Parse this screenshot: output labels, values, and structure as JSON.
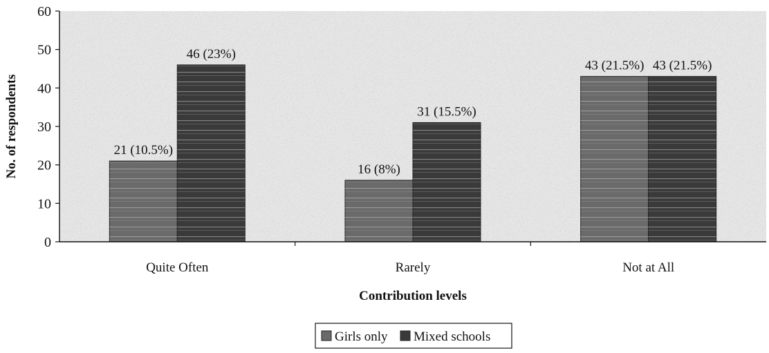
{
  "chart_data": {
    "type": "bar",
    "xlabel": "Contribution levels",
    "ylabel": "No. of respondents",
    "ylim": [
      0,
      60
    ],
    "yticks": [
      0,
      10,
      20,
      30,
      40,
      50,
      60
    ],
    "categories": [
      "Quite Often",
      "Rarely",
      "Not at All"
    ],
    "series": [
      {
        "name": "Girls only",
        "values": [
          21,
          16,
          43
        ],
        "labels": [
          "21 (10.5%)",
          "16 (8%)",
          "43 (21.5%)"
        ],
        "color": "#6a6a6a"
      },
      {
        "name": "Mixed schools",
        "values": [
          46,
          31,
          43
        ],
        "labels": [
          "46 (23%)",
          "31 (15.5%)",
          "43 (21.5%)"
        ],
        "color": "#3a3a3a"
      }
    ],
    "legend_position": "bottom",
    "grid": false
  }
}
